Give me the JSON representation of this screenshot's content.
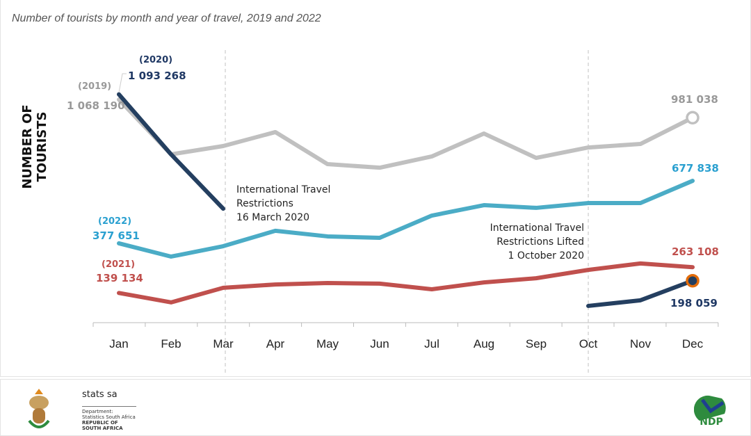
{
  "chart_data": {
    "type": "line",
    "title": "Number of tourists by month and year of travel, 2019 and 2022",
    "ylabel": "NUMBER OF TOURISTS",
    "xlabel": "",
    "categories": [
      "Jan",
      "Feb",
      "Mar",
      "Apr",
      "May",
      "Jun",
      "Jul",
      "Aug",
      "Sep",
      "Oct",
      "Nov",
      "Dec"
    ],
    "ylim": [
      0,
      1180000
    ],
    "grid": false,
    "series": [
      {
        "name": "(2019)",
        "color": "#c0c0c0",
        "label_color": "#999999",
        "values": [
          1068190,
          805000,
          845000,
          912000,
          758000,
          741000,
          795000,
          905000,
          788000,
          838000,
          855000,
          981038
        ]
      },
      {
        "name": "(2020)",
        "color": "#243f60",
        "label_color": "#1f3864",
        "values": [
          1093268,
          805000,
          544000,
          null,
          null,
          null,
          null,
          null,
          null,
          77000,
          104000,
          198059
        ]
      },
      {
        "name": "(2021)",
        "color": "#c0504d",
        "label_color": "#c0504d",
        "values": [
          139134,
          94000,
          164000,
          180000,
          187000,
          184000,
          157000,
          190000,
          210000,
          250000,
          281000,
          263108
        ]
      },
      {
        "name": "(2022)",
        "color": "#4bacc6",
        "label_color": "#2aa0d0",
        "values": [
          377651,
          314000,
          364000,
          438000,
          411000,
          404000,
          511000,
          561000,
          548000,
          571000,
          571000,
          677838
        ]
      }
    ],
    "data_labels": {
      "y2019_jan": "1 068 190",
      "y2019_dec": "981 038",
      "y2020_jan": "1 093 268",
      "y2020_dec": "198 059",
      "y2021_jan": "139 134",
      "y2021_dec": "263 108",
      "y2022_jan": "377 651",
      "y2022_dec": "677 838"
    },
    "annotations": [
      {
        "month": "Mar",
        "lines": [
          "International Travel",
          "Restrictions",
          "16 March 2020"
        ]
      },
      {
        "month": "Oct",
        "lines": [
          "International Travel",
          "Restrictions Lifted",
          "1 October 2020"
        ]
      }
    ]
  },
  "footer": {
    "logo_name": "stats sa",
    "logo_lines": [
      "Department:",
      "Statistics South Africa",
      "REPUBLIC OF SOUTH AFRICA"
    ],
    "ndp_logo": "NDP 2030"
  }
}
